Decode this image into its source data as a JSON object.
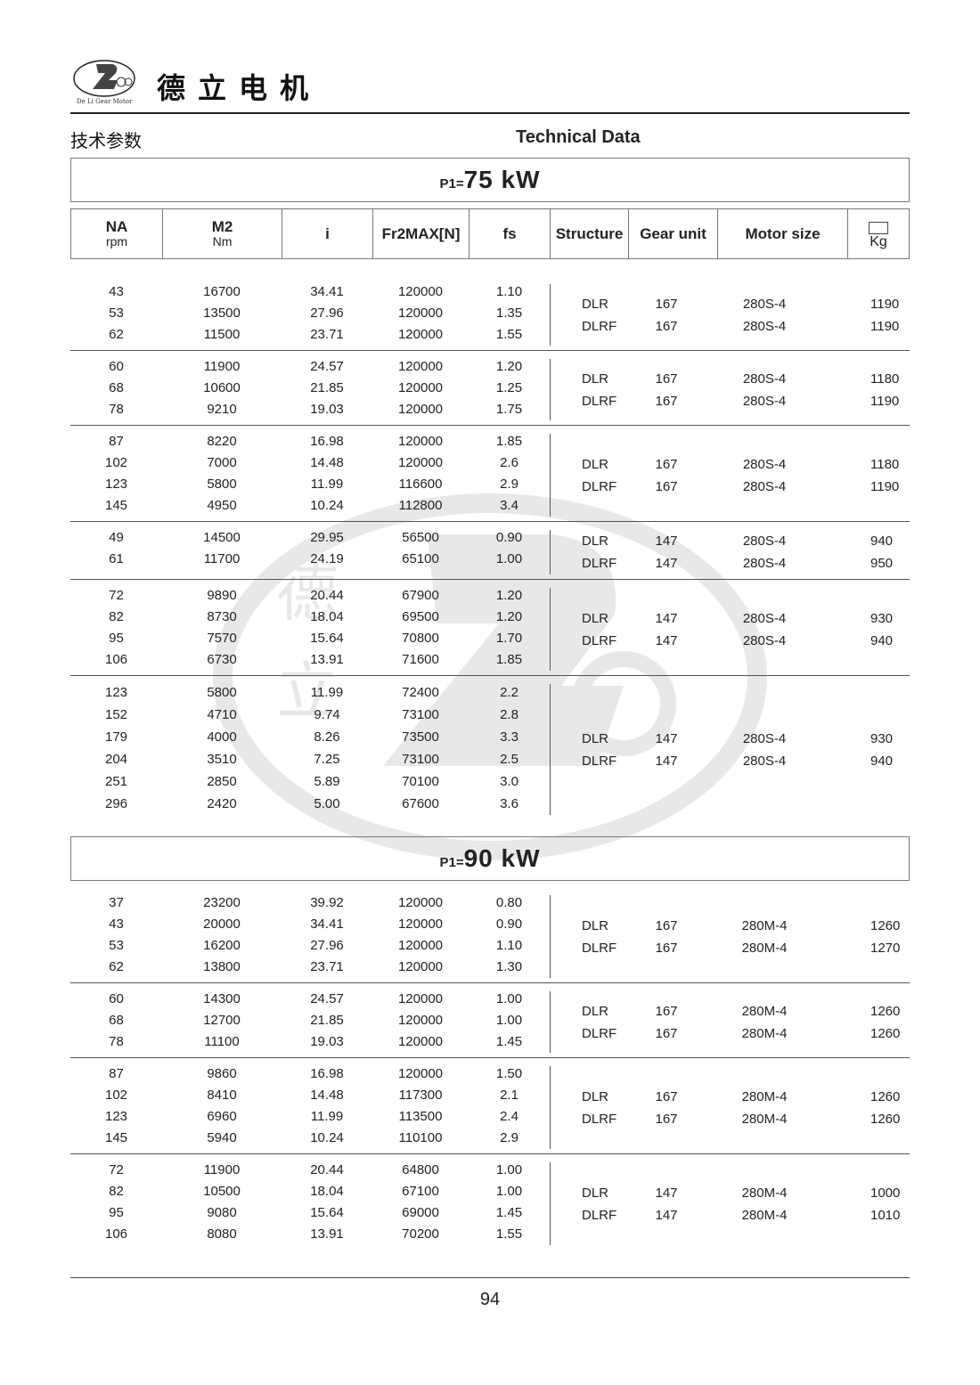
{
  "header": {
    "brand": "德立电机",
    "logo_text": "De Li Gear Motor",
    "title_cn": "技术参数",
    "title_en": "Technical Data"
  },
  "columns": {
    "na": "NA",
    "na_sub": "rpm",
    "m2": "M2",
    "m2_sub": "Nm",
    "i": "i",
    "fr": "Fr2MAX[N]",
    "fs": "fs",
    "structure": "Structure",
    "gear_unit": "Gear unit",
    "motor_size": "Motor size",
    "weight": "Kg"
  },
  "watermark": "De Li Gear Motor",
  "sections": [
    {
      "power_label": "P1=",
      "power": "75 kW",
      "groups": [
        {
          "rows": [
            [
              "43",
              "16700",
              "34.41",
              "120000",
              "1.10"
            ],
            [
              "53",
              "13500",
              "27.96",
              "120000",
              "1.35"
            ],
            [
              "62",
              "11500",
              "23.71",
              "120000",
              "1.55"
            ]
          ],
          "variants": [
            [
              "DLR",
              "167",
              "280S-4",
              "1190"
            ],
            [
              "DLRF",
              "167",
              "280S-4",
              "1190"
            ]
          ]
        },
        {
          "rows": [
            [
              "60",
              "11900",
              "24.57",
              "120000",
              "1.20"
            ],
            [
              "68",
              "10600",
              "21.85",
              "120000",
              "1.25"
            ],
            [
              "78",
              "9210",
              "19.03",
              "120000",
              "1.75"
            ]
          ],
          "variants": [
            [
              "DLR",
              "167",
              "280S-4",
              "1180"
            ],
            [
              "DLRF",
              "167",
              "280S-4",
              "1190"
            ]
          ]
        },
        {
          "rows": [
            [
              "87",
              "8220",
              "16.98",
              "120000",
              "1.85"
            ],
            [
              "102",
              "7000",
              "14.48",
              "120000",
              "2.6"
            ],
            [
              "123",
              "5800",
              "11.99",
              "116600",
              "2.9"
            ],
            [
              "145",
              "4950",
              "10.24",
              "112800",
              "3.4"
            ]
          ],
          "variants": [
            [
              "DLR",
              "167",
              "280S-4",
              "1180"
            ],
            [
              "DLRF",
              "167",
              "280S-4",
              "1190"
            ]
          ]
        },
        {
          "rows": [
            [
              "49",
              "14500",
              "29.95",
              "56500",
              "0.90"
            ],
            [
              "61",
              "11700",
              "24.19",
              "65100",
              "1.00"
            ]
          ],
          "variants": [
            [
              "DLR",
              "147",
              "280S-4",
              "940"
            ],
            [
              "DLRF",
              "147",
              "280S-4",
              "950"
            ]
          ]
        },
        {
          "rows": [
            [
              "72",
              "9890",
              "20.44",
              "67900",
              "1.20"
            ],
            [
              "82",
              "8730",
              "18.04",
              "69500",
              "1.20"
            ],
            [
              "95",
              "7570",
              "15.64",
              "70800",
              "1.70"
            ],
            [
              "106",
              "6730",
              "13.91",
              "71600",
              "1.85"
            ]
          ],
          "variants": [
            [
              "DLR",
              "147",
              "280S-4",
              "930"
            ],
            [
              "DLRF",
              "147",
              "280S-4",
              "940"
            ]
          ]
        },
        {
          "rows": [
            [
              "123",
              "5800",
              "11.99",
              "72400",
              "2.2"
            ],
            [
              "152",
              "4710",
              "9.74",
              "73100",
              "2.8"
            ],
            [
              "179",
              "4000",
              "8.26",
              "73500",
              "3.3"
            ],
            [
              "204",
              "3510",
              "7.25",
              "73100",
              "2.5"
            ],
            [
              "251",
              "2850",
              "5.89",
              "70100",
              "3.0"
            ],
            [
              "296",
              "2420",
              "5.00",
              "67600",
              "3.6"
            ]
          ],
          "variants": [
            [
              "DLR",
              "147",
              "280S-4",
              "930"
            ],
            [
              "DLRF",
              "147",
              "280S-4",
              "940"
            ]
          ]
        }
      ]
    },
    {
      "power_label": "P1=",
      "power": "90 kW",
      "groups": [
        {
          "rows": [
            [
              "37",
              "23200",
              "39.92",
              "120000",
              "0.80"
            ],
            [
              "43",
              "20000",
              "34.41",
              "120000",
              "0.90"
            ],
            [
              "53",
              "16200",
              "27.96",
              "120000",
              "1.10"
            ],
            [
              "62",
              "13800",
              "23.71",
              "120000",
              "1.30"
            ]
          ],
          "variants": [
            [
              "DLR",
              "167",
              "280M-4",
              "1260"
            ],
            [
              "DLRF",
              "167",
              "280M-4",
              "1270"
            ]
          ]
        },
        {
          "rows": [
            [
              "60",
              "14300",
              "24.57",
              "120000",
              "1.00"
            ],
            [
              "68",
              "12700",
              "21.85",
              "120000",
              "1.00"
            ],
            [
              "78",
              "11100",
              "19.03",
              "120000",
              "1.45"
            ]
          ],
          "variants": [
            [
              "DLR",
              "167",
              "280M-4",
              "1260"
            ],
            [
              "DLRF",
              "167",
              "280M-4",
              "1260"
            ]
          ]
        },
        {
          "rows": [
            [
              "87",
              "9860",
              "16.98",
              "120000",
              "1.50"
            ],
            [
              "102",
              "8410",
              "14.48",
              "117300",
              "2.1"
            ],
            [
              "123",
              "6960",
              "11.99",
              "113500",
              "2.4"
            ],
            [
              "145",
              "5940",
              "10.24",
              "110100",
              "2.9"
            ]
          ],
          "variants": [
            [
              "DLR",
              "167",
              "280M-4",
              "1260"
            ],
            [
              "DLRF",
              "167",
              "280M-4",
              "1260"
            ]
          ]
        },
        {
          "rows": [
            [
              "72",
              "11900",
              "20.44",
              "64800",
              "1.00"
            ],
            [
              "82",
              "10500",
              "18.04",
              "67100",
              "1.00"
            ],
            [
              "95",
              "9080",
              "15.64",
              "69000",
              "1.45"
            ],
            [
              "106",
              "8080",
              "13.91",
              "70200",
              "1.55"
            ]
          ],
          "variants": [
            [
              "DLR",
              "147",
              "280M-4",
              "1000"
            ],
            [
              "DLRF",
              "147",
              "280M-4",
              "1010"
            ]
          ]
        }
      ]
    }
  ],
  "footer": {
    "page": "94"
  }
}
